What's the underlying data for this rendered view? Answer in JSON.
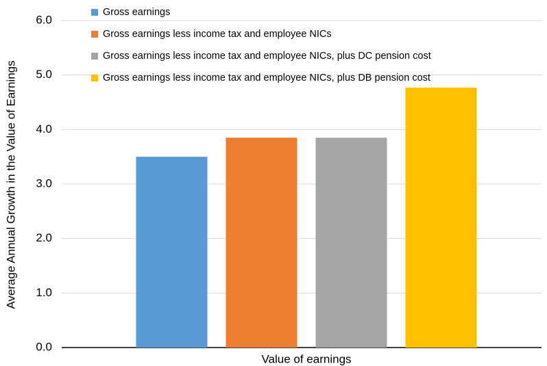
{
  "chart_data": {
    "type": "bar",
    "y_label": "Average Annual Growth in the Value of Earnings",
    "categories": [
      "Value of earnings"
    ],
    "series": [
      {
        "name": "Gross earnings",
        "color": "#5b9bd5",
        "values": [
          3.5
        ]
      },
      {
        "name": "Gross earnings less income tax and employee NICs",
        "color": "#ed7d31",
        "values": [
          3.85
        ]
      },
      {
        "name": "Gross earnings less income tax and employee NICs, plus DC pension cost",
        "color": "#a5a5a5",
        "values": [
          3.85
        ]
      },
      {
        "name": "Gross earnings less income tax and employee NICs, plus DB pension cost",
        "color": "#ffc000",
        "values": [
          4.77
        ]
      }
    ],
    "ylim": [
      0,
      6
    ],
    "yticks": [
      {
        "value": 0,
        "label": "0.0"
      },
      {
        "value": 1,
        "label": "1.0"
      },
      {
        "value": 2,
        "label": "2.0"
      },
      {
        "value": 3,
        "label": "3.0"
      },
      {
        "value": 4,
        "label": "4.0"
      },
      {
        "value": 5,
        "label": "5.0"
      },
      {
        "value": 6,
        "label": "6.0"
      }
    ],
    "grid": true,
    "legend": "top-left"
  }
}
